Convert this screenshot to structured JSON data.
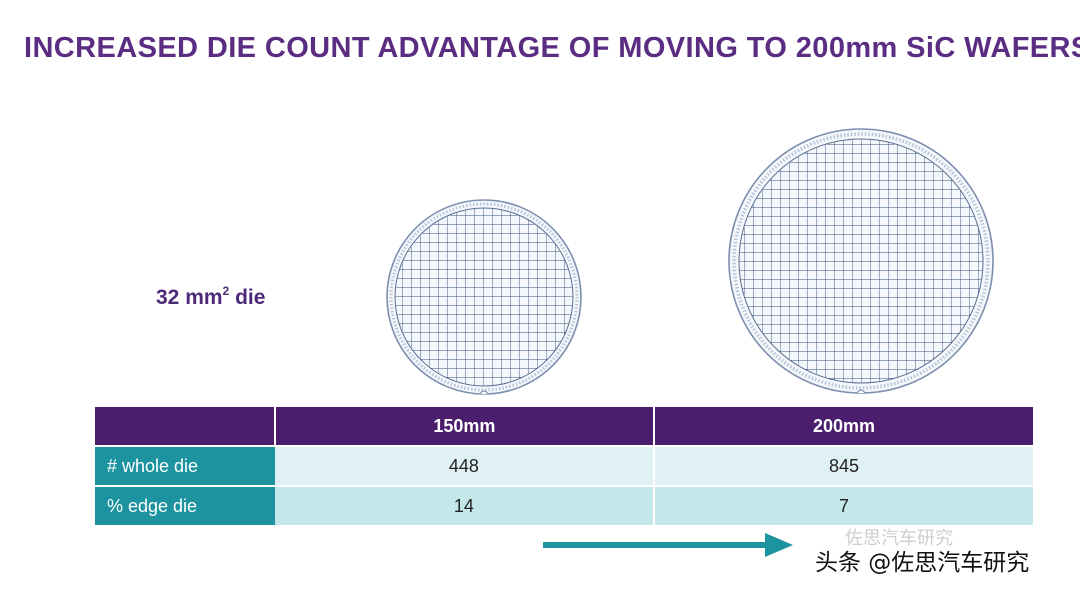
{
  "slide": {
    "title": "INCREASED DIE COUNT ADVANTAGE OF MOVING TO 200mm SiC WAFERS",
    "die_size_value": "32 mm",
    "die_size_exponent": "2",
    "die_size_unit": " die"
  },
  "colors": {
    "title": "#5b2d82",
    "table_header": "#4a1e6d",
    "row_label": "#1e93a0",
    "row1_cell": "#dff1f4",
    "row2_cell": "#c4e7ec",
    "arrow": "#1e93a0"
  },
  "table": {
    "columns": [
      "",
      "150mm",
      "200mm"
    ],
    "rows": [
      {
        "label": "# whole die",
        "values": [
          "448",
          "845"
        ]
      },
      {
        "label": "% edge die",
        "values": [
          "14",
          "7"
        ]
      }
    ]
  },
  "watermark": {
    "text": "头条 @佐思汽车研究",
    "faint_text": "佐思汽车研究"
  }
}
